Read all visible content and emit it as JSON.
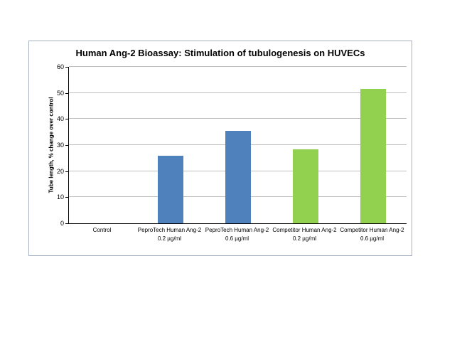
{
  "chart_data": {
    "type": "bar",
    "title": "Human Ang-2 Bioassay: Stimulation of tubulogenesis on HUVECs",
    "xlabel": "",
    "ylabel": "Tube length, % change over control",
    "ylim": [
      0,
      60
    ],
    "yticks": [
      0,
      10,
      20,
      30,
      40,
      50,
      60
    ],
    "grid": true,
    "legend": false,
    "categories": [
      "Control",
      "PeproTech Human Ang-2\n0.2 µg/ml",
      "PeproTech Human Ang-2\n0.6 µg/ml",
      "Competitor Human Ang-2\n0.2 µg/ml",
      "Competitor Human Ang-2\n0.6 µg/ml"
    ],
    "values": [
      0,
      26,
      35.5,
      28.5,
      51.5
    ],
    "bar_colors": [
      "#4f81bd",
      "#4f81bd",
      "#4f81bd",
      "#92d050",
      "#92d050"
    ],
    "colors": {
      "peprotech_series": "#4f81bd",
      "competitor_series": "#92d050",
      "gridline": "#bfbfbf",
      "axis": "#000000",
      "chart_border": "#a3b1c2"
    }
  }
}
